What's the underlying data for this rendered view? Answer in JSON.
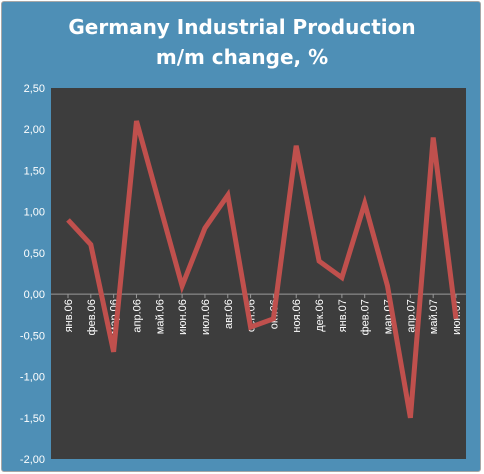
{
  "chart_data": {
    "type": "line",
    "title": [
      "Germany Industrial Production",
      "m/m change, %"
    ],
    "categories": [
      "янв.06",
      "фев.06",
      "мар.06",
      "апр.06",
      "май.06",
      "июн.06",
      "июл.06",
      "авг.06",
      "сен.06",
      "окт.06",
      "ноя.06",
      "дек.06",
      "янв.07",
      "фев.07",
      "мар.07",
      "апр.07",
      "май.07",
      "июн.07"
    ],
    "series": [
      {
        "values": [
          0.9,
          0.6,
          -0.7,
          2.1,
          1.1,
          0.1,
          0.8,
          1.2,
          -0.4,
          -0.3,
          1.8,
          0.4,
          0.2,
          1.1,
          0.1,
          -1.5,
          1.9,
          -0.3
        ]
      }
    ],
    "ylim": [
      -2.0,
      2.5
    ],
    "yticks": [
      "2,50",
      "2,00",
      "1,50",
      "1,00",
      "0,50",
      "0,00",
      "-0,50",
      "-1,00",
      "-1,50",
      "-2,00"
    ],
    "grid": false,
    "colors": {
      "plot_bg": "#3d3d3d",
      "frame_bg": "#4e8fb6",
      "line": "#c0504d"
    }
  }
}
